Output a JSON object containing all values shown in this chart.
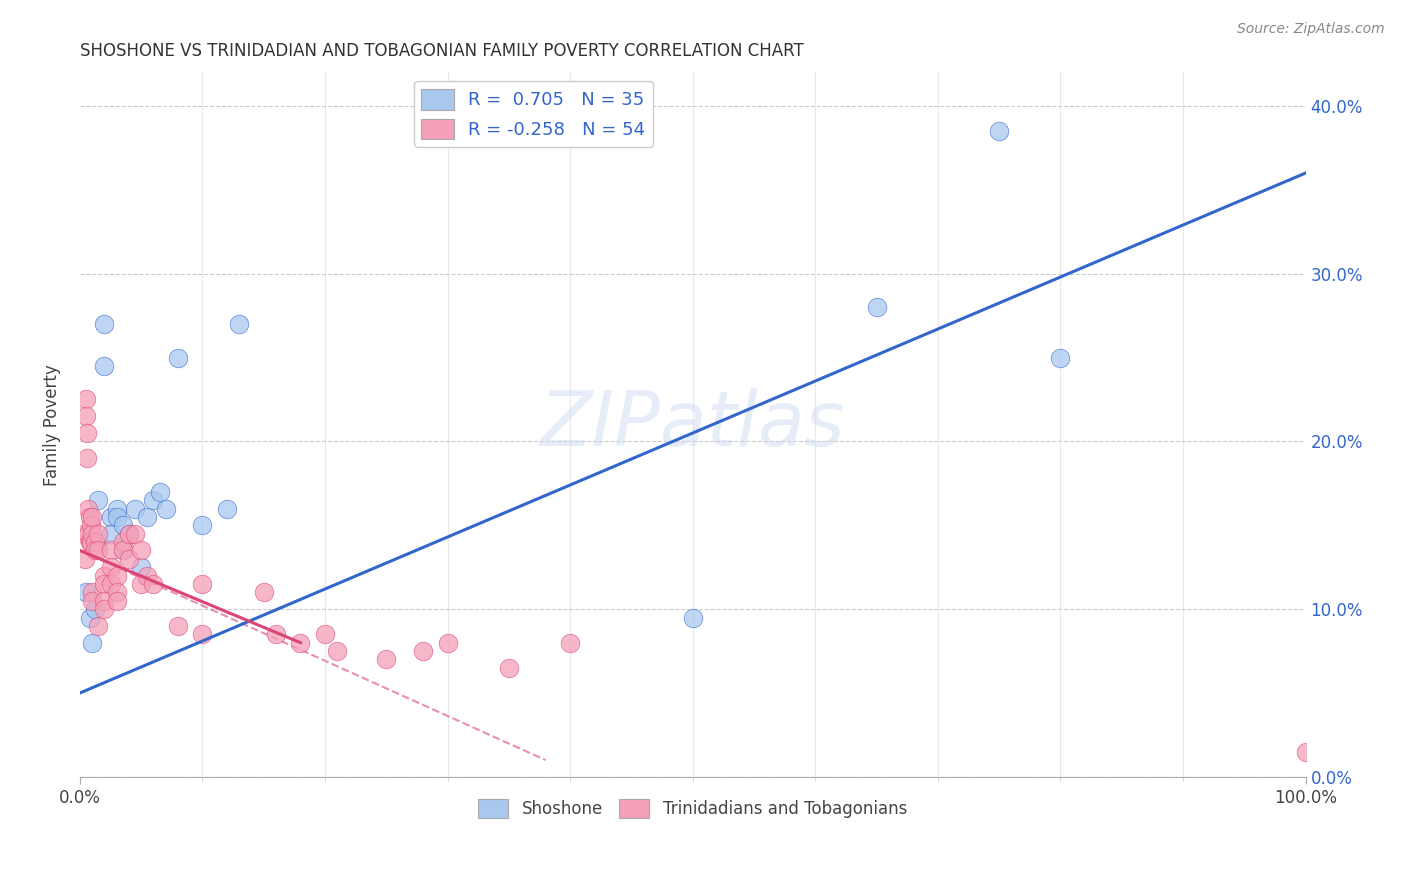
{
  "title": "SHOSHONE VS TRINIDADIAN AND TOBAGONIAN FAMILY POVERTY CORRELATION CHART",
  "source": "Source: ZipAtlas.com",
  "xlabel": "",
  "ylabel": "Family Poverty",
  "xlim": [
    0,
    100
  ],
  "ylim": [
    0,
    42
  ],
  "xticks_major": [
    0,
    100
  ],
  "xticks_minor": [
    10,
    20,
    30,
    40,
    50,
    60,
    70,
    80,
    90
  ],
  "yticks": [
    0,
    10,
    20,
    30,
    40
  ],
  "watermark": "ZIPatlas",
  "legend_label1": "Shoshone",
  "legend_label2": "Trinidadians and Tobagonians",
  "color_blue": "#A8C8F0",
  "color_pink": "#F4A0B8",
  "color_blue_line": "#3366CC",
  "color_pink_line": "#DD4477",
  "color_dashed": "#DD4477",
  "blue_scatter_x": [
    0.5,
    0.8,
    1.0,
    1.2,
    1.5,
    1.5,
    2.0,
    2.0,
    2.5,
    2.5,
    3.0,
    3.0,
    3.5,
    3.5,
    4.0,
    4.5,
    5.0,
    5.5,
    6.0,
    6.5,
    7.0,
    8.0,
    10.0,
    12.0,
    13.0,
    50.0,
    65.0,
    75.0,
    80.0
  ],
  "blue_scatter_y": [
    11.0,
    9.5,
    8.0,
    10.0,
    14.0,
    16.5,
    27.0,
    24.5,
    15.5,
    14.5,
    16.0,
    15.5,
    15.0,
    13.5,
    14.5,
    16.0,
    12.5,
    15.5,
    16.5,
    17.0,
    16.0,
    25.0,
    15.0,
    16.0,
    27.0,
    9.5,
    28.0,
    38.5,
    25.0
  ],
  "pink_scatter_x": [
    0.3,
    0.4,
    0.5,
    0.5,
    0.6,
    0.6,
    0.7,
    0.7,
    0.8,
    0.8,
    0.9,
    0.9,
    1.0,
    1.0,
    1.0,
    1.0,
    1.2,
    1.2,
    1.5,
    1.5,
    1.5,
    2.0,
    2.0,
    2.0,
    2.0,
    2.5,
    2.5,
    2.5,
    3.0,
    3.0,
    3.0,
    3.5,
    3.5,
    4.0,
    4.0,
    4.5,
    5.0,
    5.0,
    5.5,
    6.0,
    8.0,
    10.0,
    10.0,
    15.0,
    16.0,
    18.0,
    20.0,
    21.0,
    25.0,
    28.0,
    30.0,
    35.0,
    40.0,
    100.0
  ],
  "pink_scatter_y": [
    14.5,
    13.0,
    22.5,
    21.5,
    19.0,
    20.5,
    14.5,
    16.0,
    14.0,
    15.5,
    14.0,
    15.0,
    14.5,
    15.5,
    11.0,
    10.5,
    14.0,
    13.5,
    14.5,
    13.5,
    9.0,
    12.0,
    11.5,
    10.5,
    10.0,
    13.5,
    12.5,
    11.5,
    12.0,
    11.0,
    10.5,
    14.0,
    13.5,
    14.5,
    13.0,
    14.5,
    13.5,
    11.5,
    12.0,
    11.5,
    9.0,
    11.5,
    8.5,
    11.0,
    8.5,
    8.0,
    8.5,
    7.5,
    7.0,
    7.5,
    8.0,
    6.5,
    8.0,
    1.5
  ],
  "blue_line_x0": 0,
  "blue_line_x1": 100,
  "blue_line_y0": 5.0,
  "blue_line_y1": 36.0,
  "pink_line_x0": 0,
  "pink_line_x1": 18,
  "pink_line_y0": 13.5,
  "pink_line_y1": 8.0,
  "dashed_line_x0": 0,
  "dashed_line_x1": 38,
  "dashed_line_y0": 13.5,
  "dashed_line_y1": 1.0
}
